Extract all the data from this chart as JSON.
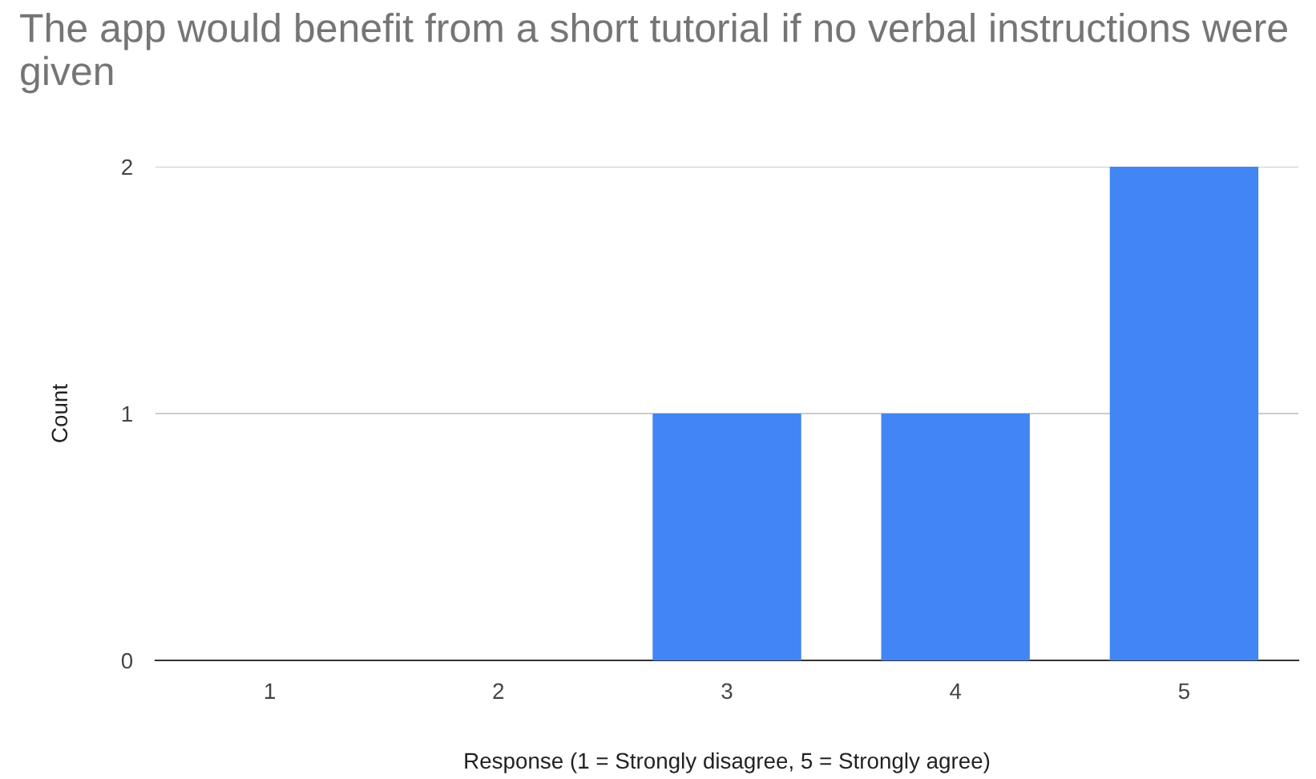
{
  "chart_data": {
    "type": "bar",
    "title": "The app would benefit from a short tutorial if no verbal instructions were given",
    "xlabel": "Response (1 = Strongly disagree, 5 = Strongly agree)",
    "ylabel": "Count",
    "categories": [
      "1",
      "2",
      "3",
      "4",
      "5"
    ],
    "values": [
      0,
      0,
      1,
      1,
      2
    ],
    "color": "#4285f4",
    "ylim": [
      0,
      2
    ],
    "yticks": [
      0,
      1,
      2
    ],
    "grid": "y",
    "legend": false
  }
}
